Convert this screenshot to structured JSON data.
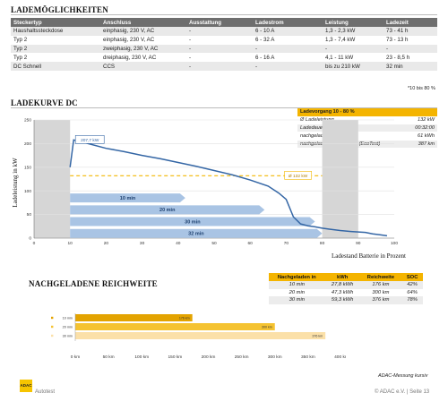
{
  "header": {
    "title": "LADEMÖGLICHKEITEN"
  },
  "charging_table": {
    "columns": [
      "Steckertyp",
      "Anschluss",
      "Ausstattung",
      "Ladestrom",
      "Leistung",
      "Ladezeit"
    ],
    "rows": [
      [
        "Haushaltssteckdose",
        "einphasig, 230 V, AC",
        "-",
        "6 - 10 A",
        "1,3 - 2,3 kW",
        "73 - 41 h"
      ],
      [
        "Typ 2",
        "einphasig, 230 V, AC",
        "-",
        "6 - 32 A",
        "1,3 - 7,4 kW",
        "73 - 13 h"
      ],
      [
        "Typ 2",
        "zweiphasig, 230 V, AC",
        "-",
        "-",
        "-",
        "-"
      ],
      [
        "Typ 2",
        "dreiphasig, 230 V, AC",
        "-",
        "6 - 16 A",
        "4,1 - 11 kW",
        "23 - 8,5 h"
      ],
      [
        "DC Schnell",
        "CCS",
        "-",
        "-",
        "bis zu 210 kW",
        "32 min"
      ]
    ],
    "footnote": "*10 bis 80 %"
  },
  "charge_curve": {
    "title": "LADEKURVE DC",
    "info": {
      "header": "Ladevorgang 10 - 80 %",
      "rows": [
        {
          "label": "Ø Ladeleistung",
          "value": "132 kW"
        },
        {
          "label": "Ladedauer",
          "value": "00:32:00"
        },
        {
          "label": "nachgeladene Energie",
          "value": "61 kWh"
        },
        {
          "label": "nachgeladene Reichweite (EcoTest)",
          "value": "387 km"
        }
      ]
    }
  },
  "range_section": {
    "title": "NACHGELADENE REICHWEITE",
    "columns": [
      "Nachgeladen in",
      "kWh",
      "Reichweite",
      "SOC"
    ],
    "rows": [
      [
        "10 min",
        "27,8 kWh",
        "176 km",
        "42%"
      ],
      [
        "20 min",
        "47,3 kWh",
        "300 km",
        "64%"
      ],
      [
        "30 min",
        "59,3 kWh",
        "376 km",
        "78%"
      ]
    ],
    "note": "ADAC-Messung kursiv"
  },
  "chart_data": [
    {
      "type": "line",
      "ylabel": "Ladeleistung in kW",
      "xlabel": "Ladestand Batterie in Prozent",
      "xlim": [
        0,
        100
      ],
      "ylim": [
        0,
        250
      ],
      "xticks": [
        0,
        10,
        20,
        30,
        40,
        50,
        60,
        70,
        80,
        90,
        100
      ],
      "yticks": [
        0,
        50,
        100,
        150,
        200,
        250
      ],
      "peak_label": "207,7 kW",
      "avg_label": "Ø 132 kW",
      "avg_value": 132,
      "shaded_ranges": [
        [
          0,
          10
        ],
        [
          80,
          90
        ]
      ],
      "time_bars": [
        {
          "label": "10 min",
          "soc_end": 42,
          "value": 85
        },
        {
          "label": "20 min",
          "soc_end": 64,
          "value": 60
        },
        {
          "label": "30 min",
          "soc_end": 78,
          "value": 35
        },
        {
          "label": "32 min",
          "soc_end": 80,
          "value": 10
        }
      ],
      "series": [
        {
          "x": [
            10,
            11,
            13,
            15,
            20,
            25,
            30,
            35,
            40,
            45,
            50,
            55,
            60,
            65,
            68,
            70,
            72,
            74,
            76,
            78,
            80,
            82,
            85,
            88,
            90,
            92,
            94,
            96,
            98
          ],
          "y": [
            150,
            207.7,
            204,
            200,
            190,
            183,
            175,
            168,
            160,
            152,
            143,
            134,
            123,
            110,
            95,
            82,
            45,
            30,
            26,
            24,
            21,
            19,
            16,
            14,
            13,
            12,
            9,
            7,
            5
          ]
        }
      ]
    },
    {
      "type": "bar",
      "orientation": "horizontal",
      "categories": [
        "10 min",
        "20 min",
        "30 min"
      ],
      "values": [
        176,
        300,
        376
      ],
      "value_labels": [
        "176 km",
        "300 km",
        "376 km"
      ],
      "xlim": [
        0,
        400
      ],
      "xticks": [
        0,
        50,
        100,
        150,
        200,
        250,
        300,
        350,
        400
      ],
      "tick_suffix": " km",
      "colors": [
        "#e3a300",
        "#f5c331",
        "#fbe0a8"
      ]
    }
  ],
  "footer": {
    "logo_text": "ADAC",
    "logo_sub": "Autotest",
    "right": "© ADAC e.V. | Seite 13"
  }
}
